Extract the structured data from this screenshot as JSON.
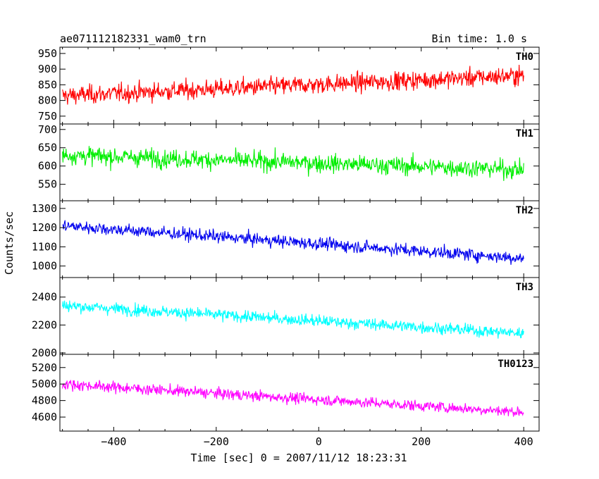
{
  "chart_data": {
    "type": "line",
    "title": "ae071112182331_wam0_trn",
    "subtitle": "Bin time: 1.0 s",
    "xlabel": "Time [sec] 0 = 2007/11/12 18:23:31",
    "ylabel": "Counts/sec",
    "xlim": [
      -505,
      430
    ],
    "x_ticks": [
      -400,
      -200,
      0,
      200,
      400
    ],
    "x_tick_labels": [
      "−400",
      "−200",
      "0",
      "200",
      "400"
    ],
    "grid": false,
    "panels": [
      {
        "name": "TH0",
        "color": "#ff0000",
        "ylim": [
          725,
          970
        ],
        "y_ticks": [
          750,
          800,
          850,
          900,
          950
        ],
        "x": [
          -500,
          400
        ],
        "trend": [
          815,
          880
        ],
        "noise_sd": 38
      },
      {
        "name": "TH1",
        "color": "#00ee00",
        "ylim": [
          505,
          715
        ],
        "y_ticks": [
          550,
          600,
          650,
          700
        ],
        "x": [
          -500,
          400
        ],
        "trend": [
          630,
          590
        ],
        "noise_sd": 32
      },
      {
        "name": "TH2",
        "color": "#0000ee",
        "ylim": [
          940,
          1340
        ],
        "y_ticks": [
          1000,
          1100,
          1200,
          1300
        ],
        "x": [
          -500,
          400
        ],
        "trend": [
          1210,
          1040
        ],
        "noise_sd": 42
      },
      {
        "name": "TH3",
        "color": "#00ffff",
        "ylim": [
          1990,
          2540
        ],
        "y_ticks": [
          2000,
          2200,
          2400
        ],
        "x": [
          -500,
          400
        ],
        "trend": [
          2340,
          2140
        ],
        "noise_sd": 55
      },
      {
        "name": "TH0123",
        "color": "#ff00ff",
        "ylim": [
          4430,
          5360
        ],
        "y_ticks": [
          4600,
          4800,
          5000,
          5200
        ],
        "x": [
          -500,
          400
        ],
        "trend": [
          5000,
          4660
        ],
        "noise_sd": 85
      }
    ]
  }
}
